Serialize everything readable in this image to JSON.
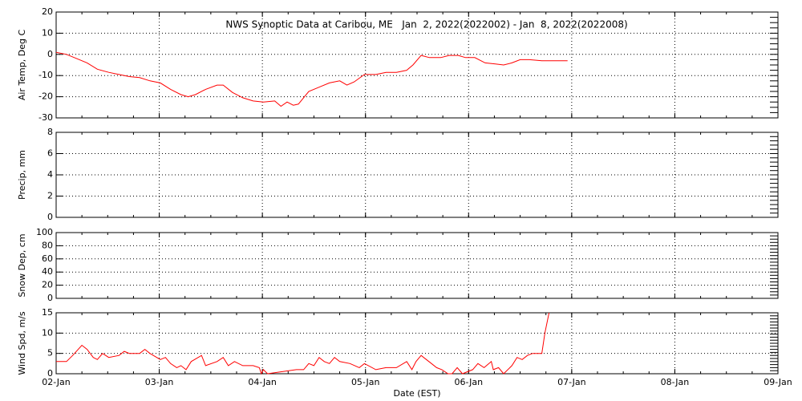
{
  "chart_data": [
    {
      "type": "line",
      "title": "NWS Synoptic Data at Caribou, ME   Jan  2, 2022(2022002) - Jan  8, 2022(2022008)",
      "ylabel": "Air Temp, Deg C",
      "xlim": [
        0,
        7
      ],
      "xticks": [
        0,
        1,
        2,
        3,
        4,
        5,
        6,
        7
      ],
      "ylim": [
        -30,
        20
      ],
      "yticks": [
        -30,
        -20,
        -10,
        0,
        10,
        20
      ],
      "grid": true,
      "series": [
        {
          "name": "Air Temp",
          "color": "#ff0000",
          "x": [
            0,
            0.1,
            0.2,
            0.3,
            0.4,
            0.51,
            0.61,
            0.71,
            0.81,
            0.91,
            1.01,
            1.11,
            1.21,
            1.28,
            1.35,
            1.45,
            1.56,
            1.62,
            1.71,
            1.81,
            1.91,
            2.01,
            2.12,
            2.18,
            2.24,
            2.3,
            2.35,
            2.45,
            2.55,
            2.65,
            2.75,
            2.82,
            2.89,
            2.99,
            3.1,
            3.2,
            3.3,
            3.4,
            3.46,
            3.54,
            3.62,
            3.73,
            3.81,
            3.9,
            3.97,
            4.06,
            4.16,
            4.26,
            4.34,
            4.42,
            4.5,
            4.59,
            4.71,
            4.82,
            4.96
          ],
          "values": [
            1,
            0,
            -2,
            -4,
            -7,
            -8.5,
            -9.5,
            -10.5,
            -11,
            -12.5,
            -13.5,
            -16.5,
            -19,
            -20,
            -19,
            -16.5,
            -14.5,
            -14.5,
            -18,
            -20.5,
            -22,
            -22.5,
            -22,
            -24.5,
            -22.5,
            -24,
            -23.5,
            -17.5,
            -15.5,
            -13.5,
            -12.5,
            -14.5,
            -13,
            -9.5,
            -9.5,
            -8.5,
            -8.5,
            -7.5,
            -5,
            -0.5,
            -1.5,
            -1.5,
            -0.5,
            -0.5,
            -1.5,
            -1.5,
            -4,
            -4.5,
            -5,
            -4,
            -2.5,
            -2.5,
            -3,
            -3,
            -3
          ]
        }
      ]
    },
    {
      "type": "line",
      "ylabel": "Precip, mm",
      "xlim": [
        0,
        7
      ],
      "xticks": [
        0,
        1,
        2,
        3,
        4,
        5,
        6,
        7
      ],
      "ylim": [
        0,
        8
      ],
      "yticks": [
        0,
        2,
        4,
        6,
        8
      ],
      "grid": true
    },
    {
      "type": "line",
      "ylabel": "Snow Dep, cm",
      "xlim": [
        0,
        7
      ],
      "xticks": [
        0,
        1,
        2,
        3,
        4,
        5,
        6,
        7
      ],
      "ylim": [
        0,
        100
      ],
      "yticks": [
        0,
        20,
        40,
        60,
        80,
        100
      ],
      "grid": true
    },
    {
      "type": "line",
      "ylabel": "Wind Spd, m/s",
      "xlabel": "Date (EST)",
      "xlim": [
        0,
        7
      ],
      "xticks": [
        {
          "value": 0,
          "label": "02-Jan"
        },
        {
          "value": 1,
          "label": "03-Jan"
        },
        {
          "value": 2,
          "label": "04-Jan"
        },
        {
          "value": 3,
          "label": "05-Jan"
        },
        {
          "value": 4,
          "label": "06-Jan"
        },
        {
          "value": 5,
          "label": "07-Jan"
        },
        {
          "value": 6,
          "label": "08-Jan"
        },
        {
          "value": 7,
          "label": "09-Jan"
        }
      ],
      "ylim": [
        0,
        15
      ],
      "yticks": [
        0,
        5,
        10,
        15
      ],
      "grid": true,
      "series": [
        {
          "name": "Wind Speed",
          "color": "#ff0000",
          "x": [
            0,
            0.1,
            0.16,
            0.25,
            0.3,
            0.36,
            0.4,
            0.45,
            0.51,
            0.61,
            0.66,
            0.71,
            0.81,
            0.86,
            0.91,
            1.01,
            1.06,
            1.11,
            1.17,
            1.21,
            1.26,
            1.31,
            1.41,
            1.45,
            1.56,
            1.62,
            1.67,
            1.73,
            1.81,
            1.91,
            1.97,
            1.99,
            2.01,
            2.05,
            2.33,
            2.4,
            2.45,
            2.5,
            2.55,
            2.6,
            2.65,
            2.7,
            2.75,
            2.85,
            2.94,
            2.99,
            3.1,
            3.2,
            3.3,
            3.4,
            3.45,
            3.49,
            3.54,
            3.59,
            3.64,
            3.69,
            3.74,
            3.8,
            3.84,
            3.89,
            3.94,
            4.04,
            4.09,
            4.15,
            4.22,
            4.24,
            4.29,
            4.34,
            4.42,
            4.47,
            4.52,
            4.57,
            4.62,
            4.71,
            4.74,
            4.78
          ],
          "values": [
            3,
            3,
            4.5,
            7,
            6,
            4,
            3.5,
            5,
            4,
            4.5,
            5.5,
            5,
            5,
            6,
            5,
            3.5,
            4,
            2.5,
            1.5,
            2,
            1,
            3,
            4.5,
            2,
            3,
            4,
            2,
            3,
            2,
            2,
            1.5,
            0,
            1,
            0,
            1,
            1,
            2.5,
            2,
            4,
            3,
            2.5,
            4,
            3,
            2.5,
            1.5,
            2.5,
            1,
            1.5,
            1.5,
            3,
            1,
            3,
            4.5,
            3.5,
            2.5,
            1.5,
            1,
            0,
            0,
            1.5,
            0,
            1,
            2.5,
            1.5,
            3,
            1,
            1.5,
            0,
            2,
            4,
            3.5,
            4.5,
            5,
            5,
            10,
            15
          ]
        }
      ]
    }
  ]
}
